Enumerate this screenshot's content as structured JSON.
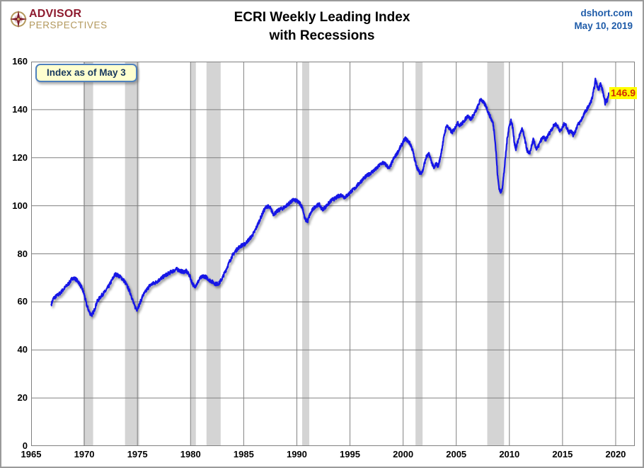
{
  "header": {
    "logo": {
      "line1": "ADVISOR",
      "line2": "PERSPECTIVES"
    },
    "title_line1": "ECRI Weekly Leading Index",
    "title_line2": "with Recessions",
    "source_line1": "dshort.com",
    "source_line2": "May 10, 2019"
  },
  "annotation": {
    "label": "Index as of May 3"
  },
  "last_value_label": "146.9",
  "colors": {
    "line": "#1414e6",
    "recession_band": "#d4d4d4",
    "grid": "#808080",
    "annotation_bg": "#ffffcf",
    "annotation_border": "#4f81bd",
    "annotation_text": "#17375d",
    "value_bg": "#ffff00",
    "value_text": "#d42b00",
    "header_blue": "#1f5ca9",
    "logo_red": "#8e1b2f",
    "logo_gold": "#b3985c"
  },
  "chart_data": {
    "type": "line",
    "title": "ECRI Weekly Leading Index with Recessions",
    "xlabel": "",
    "ylabel": "",
    "x_range": [
      1965,
      2021.8
    ],
    "y_range": [
      0,
      160
    ],
    "x_ticks": [
      1965,
      1970,
      1975,
      1980,
      1985,
      1990,
      1995,
      2000,
      2005,
      2010,
      2015,
      2020
    ],
    "y_ticks": [
      0,
      20,
      40,
      60,
      80,
      100,
      120,
      140,
      160
    ],
    "grid": true,
    "legend": "none",
    "last_value": 146.9,
    "recessions": [
      [
        1969.917,
        1970.833
      ],
      [
        1973.833,
        1975.167
      ],
      [
        1980.0,
        1980.5
      ],
      [
        1981.5,
        1982.833
      ],
      [
        1990.5,
        1991.167
      ],
      [
        2001.167,
        2001.833
      ],
      [
        2007.917,
        2009.5
      ]
    ],
    "series": [
      {
        "name": "ECRI Weekly Leading Index",
        "points": [
          [
            1966.9,
            59
          ],
          [
            1967.1,
            61.5
          ],
          [
            1967.4,
            62.5
          ],
          [
            1967.7,
            63.5
          ],
          [
            1968.0,
            65
          ],
          [
            1968.3,
            66.5
          ],
          [
            1968.6,
            68
          ],
          [
            1968.9,
            70
          ],
          [
            1969.2,
            69.5
          ],
          [
            1969.5,
            68
          ],
          [
            1969.8,
            65.5
          ],
          [
            1970.0,
            63
          ],
          [
            1970.2,
            59
          ],
          [
            1970.5,
            55.5
          ],
          [
            1970.7,
            54.5
          ],
          [
            1970.9,
            56
          ],
          [
            1971.2,
            60
          ],
          [
            1971.5,
            62
          ],
          [
            1971.8,
            63.5
          ],
          [
            1972.0,
            64.5
          ],
          [
            1972.3,
            66.5
          ],
          [
            1972.6,
            69
          ],
          [
            1972.9,
            71.5
          ],
          [
            1973.2,
            71
          ],
          [
            1973.5,
            70
          ],
          [
            1973.8,
            68.5
          ],
          [
            1974.1,
            66
          ],
          [
            1974.4,
            63
          ],
          [
            1974.7,
            58.5
          ],
          [
            1974.95,
            56.8
          ],
          [
            1975.2,
            59
          ],
          [
            1975.5,
            62.5
          ],
          [
            1975.8,
            64.5
          ],
          [
            1976.1,
            66.5
          ],
          [
            1976.4,
            67.5
          ],
          [
            1976.7,
            68
          ],
          [
            1977.0,
            69
          ],
          [
            1977.3,
            70
          ],
          [
            1977.6,
            71
          ],
          [
            1978.0,
            72
          ],
          [
            1978.4,
            73
          ],
          [
            1978.7,
            73.6
          ],
          [
            1979.0,
            73
          ],
          [
            1979.3,
            72.5
          ],
          [
            1979.6,
            72.8
          ],
          [
            1979.9,
            71
          ],
          [
            1980.1,
            68.5
          ],
          [
            1980.35,
            66.2
          ],
          [
            1980.6,
            67.5
          ],
          [
            1980.9,
            69.8
          ],
          [
            1981.2,
            70.8
          ],
          [
            1981.5,
            70.2
          ],
          [
            1981.8,
            69
          ],
          [
            1982.1,
            68.2
          ],
          [
            1982.4,
            67.4
          ],
          [
            1982.7,
            67.8
          ],
          [
            1983.0,
            70
          ],
          [
            1983.3,
            73
          ],
          [
            1983.6,
            76
          ],
          [
            1983.9,
            79
          ],
          [
            1984.2,
            81
          ],
          [
            1984.5,
            82.5
          ],
          [
            1984.8,
            83.5
          ],
          [
            1985.1,
            84
          ],
          [
            1985.4,
            85.5
          ],
          [
            1985.7,
            87
          ],
          [
            1986.0,
            89
          ],
          [
            1986.3,
            92
          ],
          [
            1986.6,
            95
          ],
          [
            1986.9,
            98
          ],
          [
            1987.2,
            100
          ],
          [
            1987.5,
            99
          ],
          [
            1987.8,
            96.5
          ],
          [
            1988.1,
            97.5
          ],
          [
            1988.4,
            98.5
          ],
          [
            1988.7,
            99
          ],
          [
            1989.0,
            100
          ],
          [
            1989.4,
            101.5
          ],
          [
            1989.7,
            102.5
          ],
          [
            1990.0,
            102
          ],
          [
            1990.3,
            101
          ],
          [
            1990.55,
            99
          ],
          [
            1990.75,
            94.5
          ],
          [
            1991.0,
            93.5
          ],
          [
            1991.2,
            96
          ],
          [
            1991.5,
            98.5
          ],
          [
            1991.8,
            100
          ],
          [
            1992.1,
            100.5
          ],
          [
            1992.4,
            98.5
          ],
          [
            1992.7,
            99.5
          ],
          [
            1993.0,
            101
          ],
          [
            1993.3,
            102.5
          ],
          [
            1993.6,
            103
          ],
          [
            1993.9,
            104
          ],
          [
            1994.2,
            104.5
          ],
          [
            1994.5,
            103.5
          ],
          [
            1994.8,
            104.5
          ],
          [
            1995.1,
            106
          ],
          [
            1995.4,
            107
          ],
          [
            1995.7,
            108.5
          ],
          [
            1996.0,
            110
          ],
          [
            1996.3,
            111.5
          ],
          [
            1996.6,
            112.5
          ],
          [
            1996.9,
            113.5
          ],
          [
            1997.2,
            114.5
          ],
          [
            1997.5,
            115.5
          ],
          [
            1997.8,
            117
          ],
          [
            1998.1,
            118
          ],
          [
            1998.4,
            117
          ],
          [
            1998.7,
            115.5
          ],
          [
            1998.9,
            117.5
          ],
          [
            1999.1,
            119.5
          ],
          [
            1999.4,
            121.5
          ],
          [
            1999.7,
            124
          ],
          [
            2000.0,
            126.5
          ],
          [
            2000.2,
            128
          ],
          [
            2000.45,
            127
          ],
          [
            2000.7,
            125.5
          ],
          [
            2000.9,
            123
          ],
          [
            2001.1,
            119
          ],
          [
            2001.35,
            115.5
          ],
          [
            2001.6,
            113.5
          ],
          [
            2001.85,
            114.5
          ],
          [
            2002.0,
            117.5
          ],
          [
            2002.2,
            120.5
          ],
          [
            2002.45,
            121.5
          ],
          [
            2002.7,
            118
          ],
          [
            2002.9,
            115.5
          ],
          [
            2003.1,
            117.5
          ],
          [
            2003.3,
            116.5
          ],
          [
            2003.5,
            120
          ],
          [
            2003.7,
            125
          ],
          [
            2003.9,
            130
          ],
          [
            2004.1,
            133.5
          ],
          [
            2004.35,
            132
          ],
          [
            2004.6,
            130.5
          ],
          [
            2004.85,
            132
          ],
          [
            2005.1,
            134.5
          ],
          [
            2005.35,
            133.5
          ],
          [
            2005.6,
            134.5
          ],
          [
            2005.85,
            136
          ],
          [
            2006.1,
            137.5
          ],
          [
            2006.35,
            136
          ],
          [
            2006.6,
            137.5
          ],
          [
            2006.85,
            139.5
          ],
          [
            2007.1,
            142
          ],
          [
            2007.3,
            144.5
          ],
          [
            2007.55,
            143
          ],
          [
            2007.8,
            141.5
          ],
          [
            2008.0,
            139
          ],
          [
            2008.2,
            137
          ],
          [
            2008.45,
            134.5
          ],
          [
            2008.6,
            130
          ],
          [
            2008.75,
            122
          ],
          [
            2008.9,
            112
          ],
          [
            2009.05,
            107
          ],
          [
            2009.2,
            105.5
          ],
          [
            2009.35,
            108
          ],
          [
            2009.5,
            114
          ],
          [
            2009.65,
            121
          ],
          [
            2009.8,
            128
          ],
          [
            2009.95,
            132.5
          ],
          [
            2010.15,
            135.5
          ],
          [
            2010.3,
            133
          ],
          [
            2010.45,
            127
          ],
          [
            2010.6,
            123.5
          ],
          [
            2010.75,
            126
          ],
          [
            2010.9,
            128.5
          ],
          [
            2011.05,
            130.5
          ],
          [
            2011.2,
            132
          ],
          [
            2011.35,
            129.5
          ],
          [
            2011.5,
            126.5
          ],
          [
            2011.65,
            123.5
          ],
          [
            2011.8,
            121.5
          ],
          [
            2011.95,
            122.5
          ],
          [
            2012.1,
            125
          ],
          [
            2012.25,
            127.5
          ],
          [
            2012.4,
            125.5
          ],
          [
            2012.55,
            123.5
          ],
          [
            2012.7,
            124.5
          ],
          [
            2012.85,
            126
          ],
          [
            2013.0,
            127.5
          ],
          [
            2013.2,
            128.5
          ],
          [
            2013.4,
            127.5
          ],
          [
            2013.6,
            129
          ],
          [
            2013.8,
            130.5
          ],
          [
            2014.0,
            132
          ],
          [
            2014.2,
            133.5
          ],
          [
            2014.4,
            134
          ],
          [
            2014.6,
            132.5
          ],
          [
            2014.8,
            131
          ],
          [
            2015.0,
            132.5
          ],
          [
            2015.2,
            134.5
          ],
          [
            2015.4,
            132.5
          ],
          [
            2015.6,
            130.5
          ],
          [
            2015.8,
            131.5
          ],
          [
            2016.0,
            129.5
          ],
          [
            2016.2,
            131
          ],
          [
            2016.4,
            133.5
          ],
          [
            2016.6,
            134.5
          ],
          [
            2016.8,
            136
          ],
          [
            2017.0,
            138
          ],
          [
            2017.2,
            139.5
          ],
          [
            2017.4,
            141
          ],
          [
            2017.6,
            142.5
          ],
          [
            2017.8,
            145
          ],
          [
            2018.0,
            149.5
          ],
          [
            2018.1,
            152.5
          ],
          [
            2018.25,
            150
          ],
          [
            2018.4,
            148.5
          ],
          [
            2018.55,
            151
          ],
          [
            2018.7,
            149
          ],
          [
            2018.85,
            146.5
          ],
          [
            2019.0,
            142.5
          ],
          [
            2019.1,
            144
          ],
          [
            2019.2,
            143
          ],
          [
            2019.3,
            146
          ],
          [
            2019.346,
            146.9
          ]
        ]
      }
    ]
  }
}
